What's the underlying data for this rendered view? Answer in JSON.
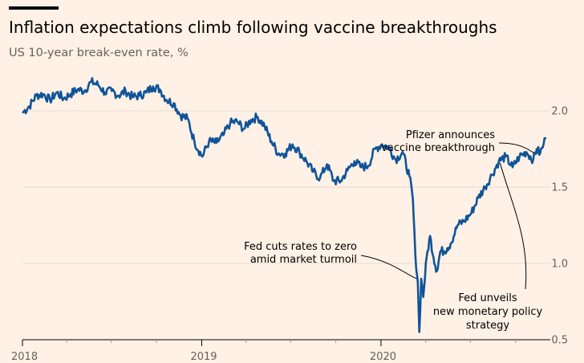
{
  "header": {
    "title": "Inflation expectations climb following vaccine breakthroughs",
    "subtitle": "US 10-year break-even rate, %"
  },
  "colors": {
    "background": "#fff1e5",
    "series": "#0f5499",
    "grid": "#e6d9ce",
    "axis_text": "#66605c"
  },
  "chart_data": {
    "type": "line",
    "title": "Inflation expectations climb following vaccine breakthroughs",
    "subtitle": "US 10-year break-even rate, %",
    "xlim": [
      "2018-01-01",
      "2020-12-01"
    ],
    "ylim": [
      0.5,
      2.2
    ],
    "x_ticks": [
      "2018",
      "2019",
      "2020"
    ],
    "y_ticks": [
      "2.0",
      "1.5",
      "1.0",
      "0.5"
    ],
    "grid": "horizontal",
    "series": [
      {
        "color": "#0f5499",
        "points": [
          [
            "2018-01-02",
            1.99
          ],
          [
            "2018-01-15",
            2.03
          ],
          [
            "2018-01-29",
            2.1
          ],
          [
            "2018-02-12",
            2.11
          ],
          [
            "2018-02-26",
            2.07
          ],
          [
            "2018-03-12",
            2.12
          ],
          [
            "2018-03-26",
            2.08
          ],
          [
            "2018-04-09",
            2.11
          ],
          [
            "2018-04-23",
            2.14
          ],
          [
            "2018-05-07",
            2.13
          ],
          [
            "2018-05-21",
            2.19
          ],
          [
            "2018-06-04",
            2.17
          ],
          [
            "2018-06-18",
            2.12
          ],
          [
            "2018-07-02",
            2.13
          ],
          [
            "2018-07-16",
            2.1
          ],
          [
            "2018-07-30",
            2.13
          ],
          [
            "2018-08-13",
            2.09
          ],
          [
            "2018-08-27",
            2.1
          ],
          [
            "2018-09-10",
            2.12
          ],
          [
            "2018-09-24",
            2.16
          ],
          [
            "2018-10-08",
            2.14
          ],
          [
            "2018-10-22",
            2.07
          ],
          [
            "2018-11-05",
            2.05
          ],
          [
            "2018-11-19",
            1.97
          ],
          [
            "2018-12-03",
            1.95
          ],
          [
            "2018-12-17",
            1.8
          ],
          [
            "2019-01-02",
            1.7
          ],
          [
            "2019-01-16",
            1.8
          ],
          [
            "2019-01-31",
            1.79
          ],
          [
            "2019-02-14",
            1.84
          ],
          [
            "2019-02-28",
            1.92
          ],
          [
            "2019-03-14",
            1.93
          ],
          [
            "2019-03-28",
            1.88
          ],
          [
            "2019-04-11",
            1.94
          ],
          [
            "2019-04-25",
            1.96
          ],
          [
            "2019-05-09",
            1.9
          ],
          [
            "2019-05-23",
            1.8
          ],
          [
            "2019-06-06",
            1.72
          ],
          [
            "2019-06-20",
            1.72
          ],
          [
            "2019-07-05",
            1.78
          ],
          [
            "2019-07-19",
            1.73
          ],
          [
            "2019-08-02",
            1.67
          ],
          [
            "2019-08-16",
            1.6
          ],
          [
            "2019-08-30",
            1.56
          ],
          [
            "2019-09-13",
            1.65
          ],
          [
            "2019-09-27",
            1.54
          ],
          [
            "2019-10-11",
            1.54
          ],
          [
            "2019-10-25",
            1.61
          ],
          [
            "2019-11-08",
            1.67
          ],
          [
            "2019-11-22",
            1.63
          ],
          [
            "2019-12-06",
            1.64
          ],
          [
            "2019-12-20",
            1.75
          ],
          [
            "2020-01-03",
            1.78
          ],
          [
            "2020-01-17",
            1.76
          ],
          [
            "2020-01-31",
            1.68
          ],
          [
            "2020-02-14",
            1.73
          ],
          [
            "2020-02-28",
            1.57
          ],
          [
            "2020-03-06",
            1.42
          ],
          [
            "2020-03-11",
            1.05
          ],
          [
            "2020-03-16",
            0.88
          ],
          [
            "2020-03-19",
            0.55
          ],
          [
            "2020-03-23",
            0.9
          ],
          [
            "2020-03-27",
            0.78
          ],
          [
            "2020-04-03",
            1.04
          ],
          [
            "2020-04-10",
            1.18
          ],
          [
            "2020-04-17",
            1.04
          ],
          [
            "2020-04-24",
            0.95
          ],
          [
            "2020-05-01",
            1.08
          ],
          [
            "2020-05-08",
            1.08
          ],
          [
            "2020-05-15",
            1.1
          ],
          [
            "2020-05-22",
            1.13
          ],
          [
            "2020-06-05",
            1.25
          ],
          [
            "2020-06-19",
            1.28
          ],
          [
            "2020-07-03",
            1.33
          ],
          [
            "2020-07-17",
            1.43
          ],
          [
            "2020-07-31",
            1.5
          ],
          [
            "2020-08-14",
            1.58
          ],
          [
            "2020-08-28",
            1.67
          ],
          [
            "2020-09-11",
            1.7
          ],
          [
            "2020-09-25",
            1.63
          ],
          [
            "2020-10-09",
            1.7
          ],
          [
            "2020-10-23",
            1.73
          ],
          [
            "2020-11-06",
            1.68
          ],
          [
            "2020-11-13",
            1.75
          ],
          [
            "2020-11-20",
            1.72
          ],
          [
            "2020-11-27",
            1.78
          ],
          [
            "2020-12-01",
            1.82
          ]
        ]
      }
    ],
    "annotations": [
      {
        "lines": [
          "Pfizer announces",
          "vaccine breakthrough"
        ],
        "date": "2020-11-09"
      },
      {
        "lines": [
          "Fed cuts rates to zero",
          "amid market turmoil"
        ],
        "date": "2020-03-16"
      },
      {
        "lines": [
          "Fed unveils",
          "new monetary policy",
          "strategy"
        ],
        "date": "2020-08-27"
      }
    ]
  }
}
